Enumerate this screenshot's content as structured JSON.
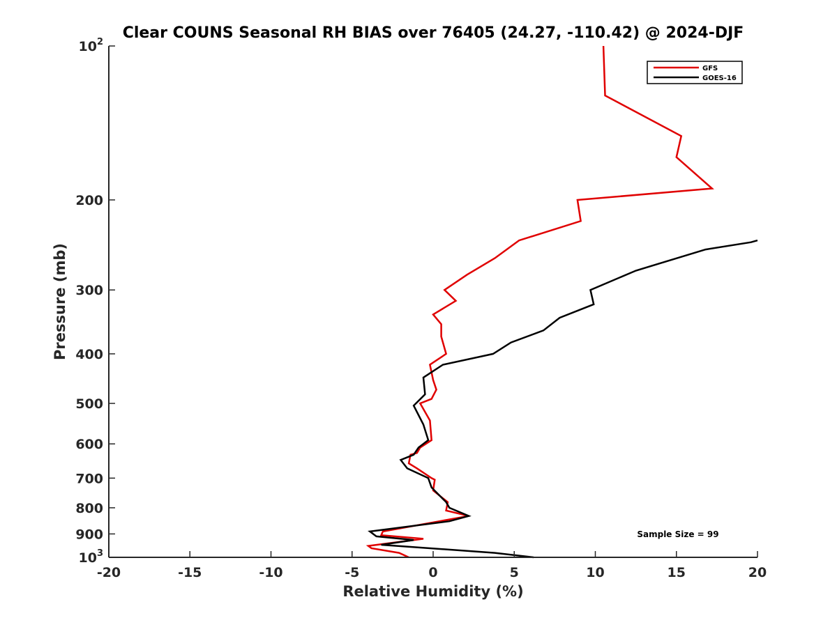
{
  "chart_data": {
    "type": "line",
    "title": "Clear COUNS Seasonal RH BIAS over 76405 (24.27, -110.42) @ 2024-DJF",
    "xlabel": "Relative Humidity (%)",
    "ylabel": "Pressure (mb)",
    "xlim": [
      -20,
      20
    ],
    "ylim": [
      100,
      1000
    ],
    "yscale": "log",
    "y_reversed": true,
    "grid": false,
    "xticks": [
      -20,
      -15,
      -10,
      -5,
      0,
      5,
      10,
      15,
      20
    ],
    "xtick_labels": [
      "-20",
      "-15",
      "-10",
      "-5",
      "0",
      "5",
      "10",
      "15",
      "20"
    ],
    "yticks": [
      100,
      200,
      300,
      400,
      500,
      600,
      700,
      800,
      900,
      1000
    ],
    "ytick_labels": [
      {
        "base": "10",
        "exp": "2"
      },
      {
        "base": "200",
        "exp": ""
      },
      {
        "base": "300",
        "exp": ""
      },
      {
        "base": "400",
        "exp": ""
      },
      {
        "base": "500",
        "exp": ""
      },
      {
        "base": "600",
        "exp": ""
      },
      {
        "base": "700",
        "exp": ""
      },
      {
        "base": "800",
        "exp": ""
      },
      {
        "base": "900",
        "exp": ""
      },
      {
        "base": "10",
        "exp": "3"
      }
    ],
    "legend": {
      "placement": "top-right"
    },
    "annotation": "Sample Size = 99",
    "series": [
      {
        "name": "GFS",
        "color": "#e00000",
        "points": [
          {
            "x": 10.5,
            "y": 100
          },
          {
            "x": 10.6,
            "y": 125
          },
          {
            "x": 15.3,
            "y": 150
          },
          {
            "x": 15.0,
            "y": 165
          },
          {
            "x": 17.2,
            "y": 190
          },
          {
            "x": 8.9,
            "y": 200
          },
          {
            "x": 9.1,
            "y": 220
          },
          {
            "x": 5.3,
            "y": 240
          },
          {
            "x": 3.8,
            "y": 260
          },
          {
            "x": 2.1,
            "y": 280
          },
          {
            "x": 0.7,
            "y": 300
          },
          {
            "x": 1.4,
            "y": 315
          },
          {
            "x": 0.0,
            "y": 335
          },
          {
            "x": 0.5,
            "y": 350
          },
          {
            "x": 0.5,
            "y": 370
          },
          {
            "x": 0.8,
            "y": 400
          },
          {
            "x": -0.2,
            "y": 420
          },
          {
            "x": 0.0,
            "y": 450
          },
          {
            "x": 0.2,
            "y": 470
          },
          {
            "x": -0.1,
            "y": 490
          },
          {
            "x": -0.8,
            "y": 500
          },
          {
            "x": -0.2,
            "y": 540
          },
          {
            "x": -0.1,
            "y": 590
          },
          {
            "x": -0.8,
            "y": 610
          },
          {
            "x": -1.0,
            "y": 625
          },
          {
            "x": -1.4,
            "y": 630
          },
          {
            "x": -1.5,
            "y": 655
          },
          {
            "x": -1.0,
            "y": 670
          },
          {
            "x": -0.1,
            "y": 700
          },
          {
            "x": 0.1,
            "y": 705
          },
          {
            "x": 0.0,
            "y": 740
          },
          {
            "x": 0.9,
            "y": 780
          },
          {
            "x": 0.8,
            "y": 810
          },
          {
            "x": 2.2,
            "y": 830
          },
          {
            "x": -3.1,
            "y": 890
          },
          {
            "x": -3.2,
            "y": 905
          },
          {
            "x": -0.6,
            "y": 920
          },
          {
            "x": -4.0,
            "y": 950
          },
          {
            "x": -3.8,
            "y": 960
          },
          {
            "x": -2.1,
            "y": 980
          },
          {
            "x": -1.5,
            "y": 1000
          }
        ]
      },
      {
        "name": "GOES-16",
        "color": "#000000",
        "points": [
          {
            "x": 20.0,
            "y": 240
          },
          {
            "x": 19.6,
            "y": 242
          },
          {
            "x": 16.8,
            "y": 250
          },
          {
            "x": 12.5,
            "y": 275
          },
          {
            "x": 9.7,
            "y": 300
          },
          {
            "x": 9.9,
            "y": 320
          },
          {
            "x": 7.8,
            "y": 340
          },
          {
            "x": 6.8,
            "y": 360
          },
          {
            "x": 4.8,
            "y": 380
          },
          {
            "x": 3.7,
            "y": 400
          },
          {
            "x": 0.6,
            "y": 420
          },
          {
            "x": -0.6,
            "y": 445
          },
          {
            "x": -0.5,
            "y": 480
          },
          {
            "x": -1.2,
            "y": 505
          },
          {
            "x": -0.6,
            "y": 550
          },
          {
            "x": -0.3,
            "y": 590
          },
          {
            "x": -0.9,
            "y": 610
          },
          {
            "x": -1.2,
            "y": 630
          },
          {
            "x": -2.0,
            "y": 645
          },
          {
            "x": -1.6,
            "y": 670
          },
          {
            "x": -0.3,
            "y": 700
          },
          {
            "x": -0.1,
            "y": 730
          },
          {
            "x": 0.8,
            "y": 780
          },
          {
            "x": 1.0,
            "y": 800
          },
          {
            "x": 2.2,
            "y": 830
          },
          {
            "x": 1.0,
            "y": 850
          },
          {
            "x": -3.9,
            "y": 890
          },
          {
            "x": -3.5,
            "y": 910
          },
          {
            "x": -1.2,
            "y": 925
          },
          {
            "x": -3.2,
            "y": 945
          },
          {
            "x": 3.8,
            "y": 980
          },
          {
            "x": 6.2,
            "y": 1000
          }
        ]
      }
    ]
  }
}
